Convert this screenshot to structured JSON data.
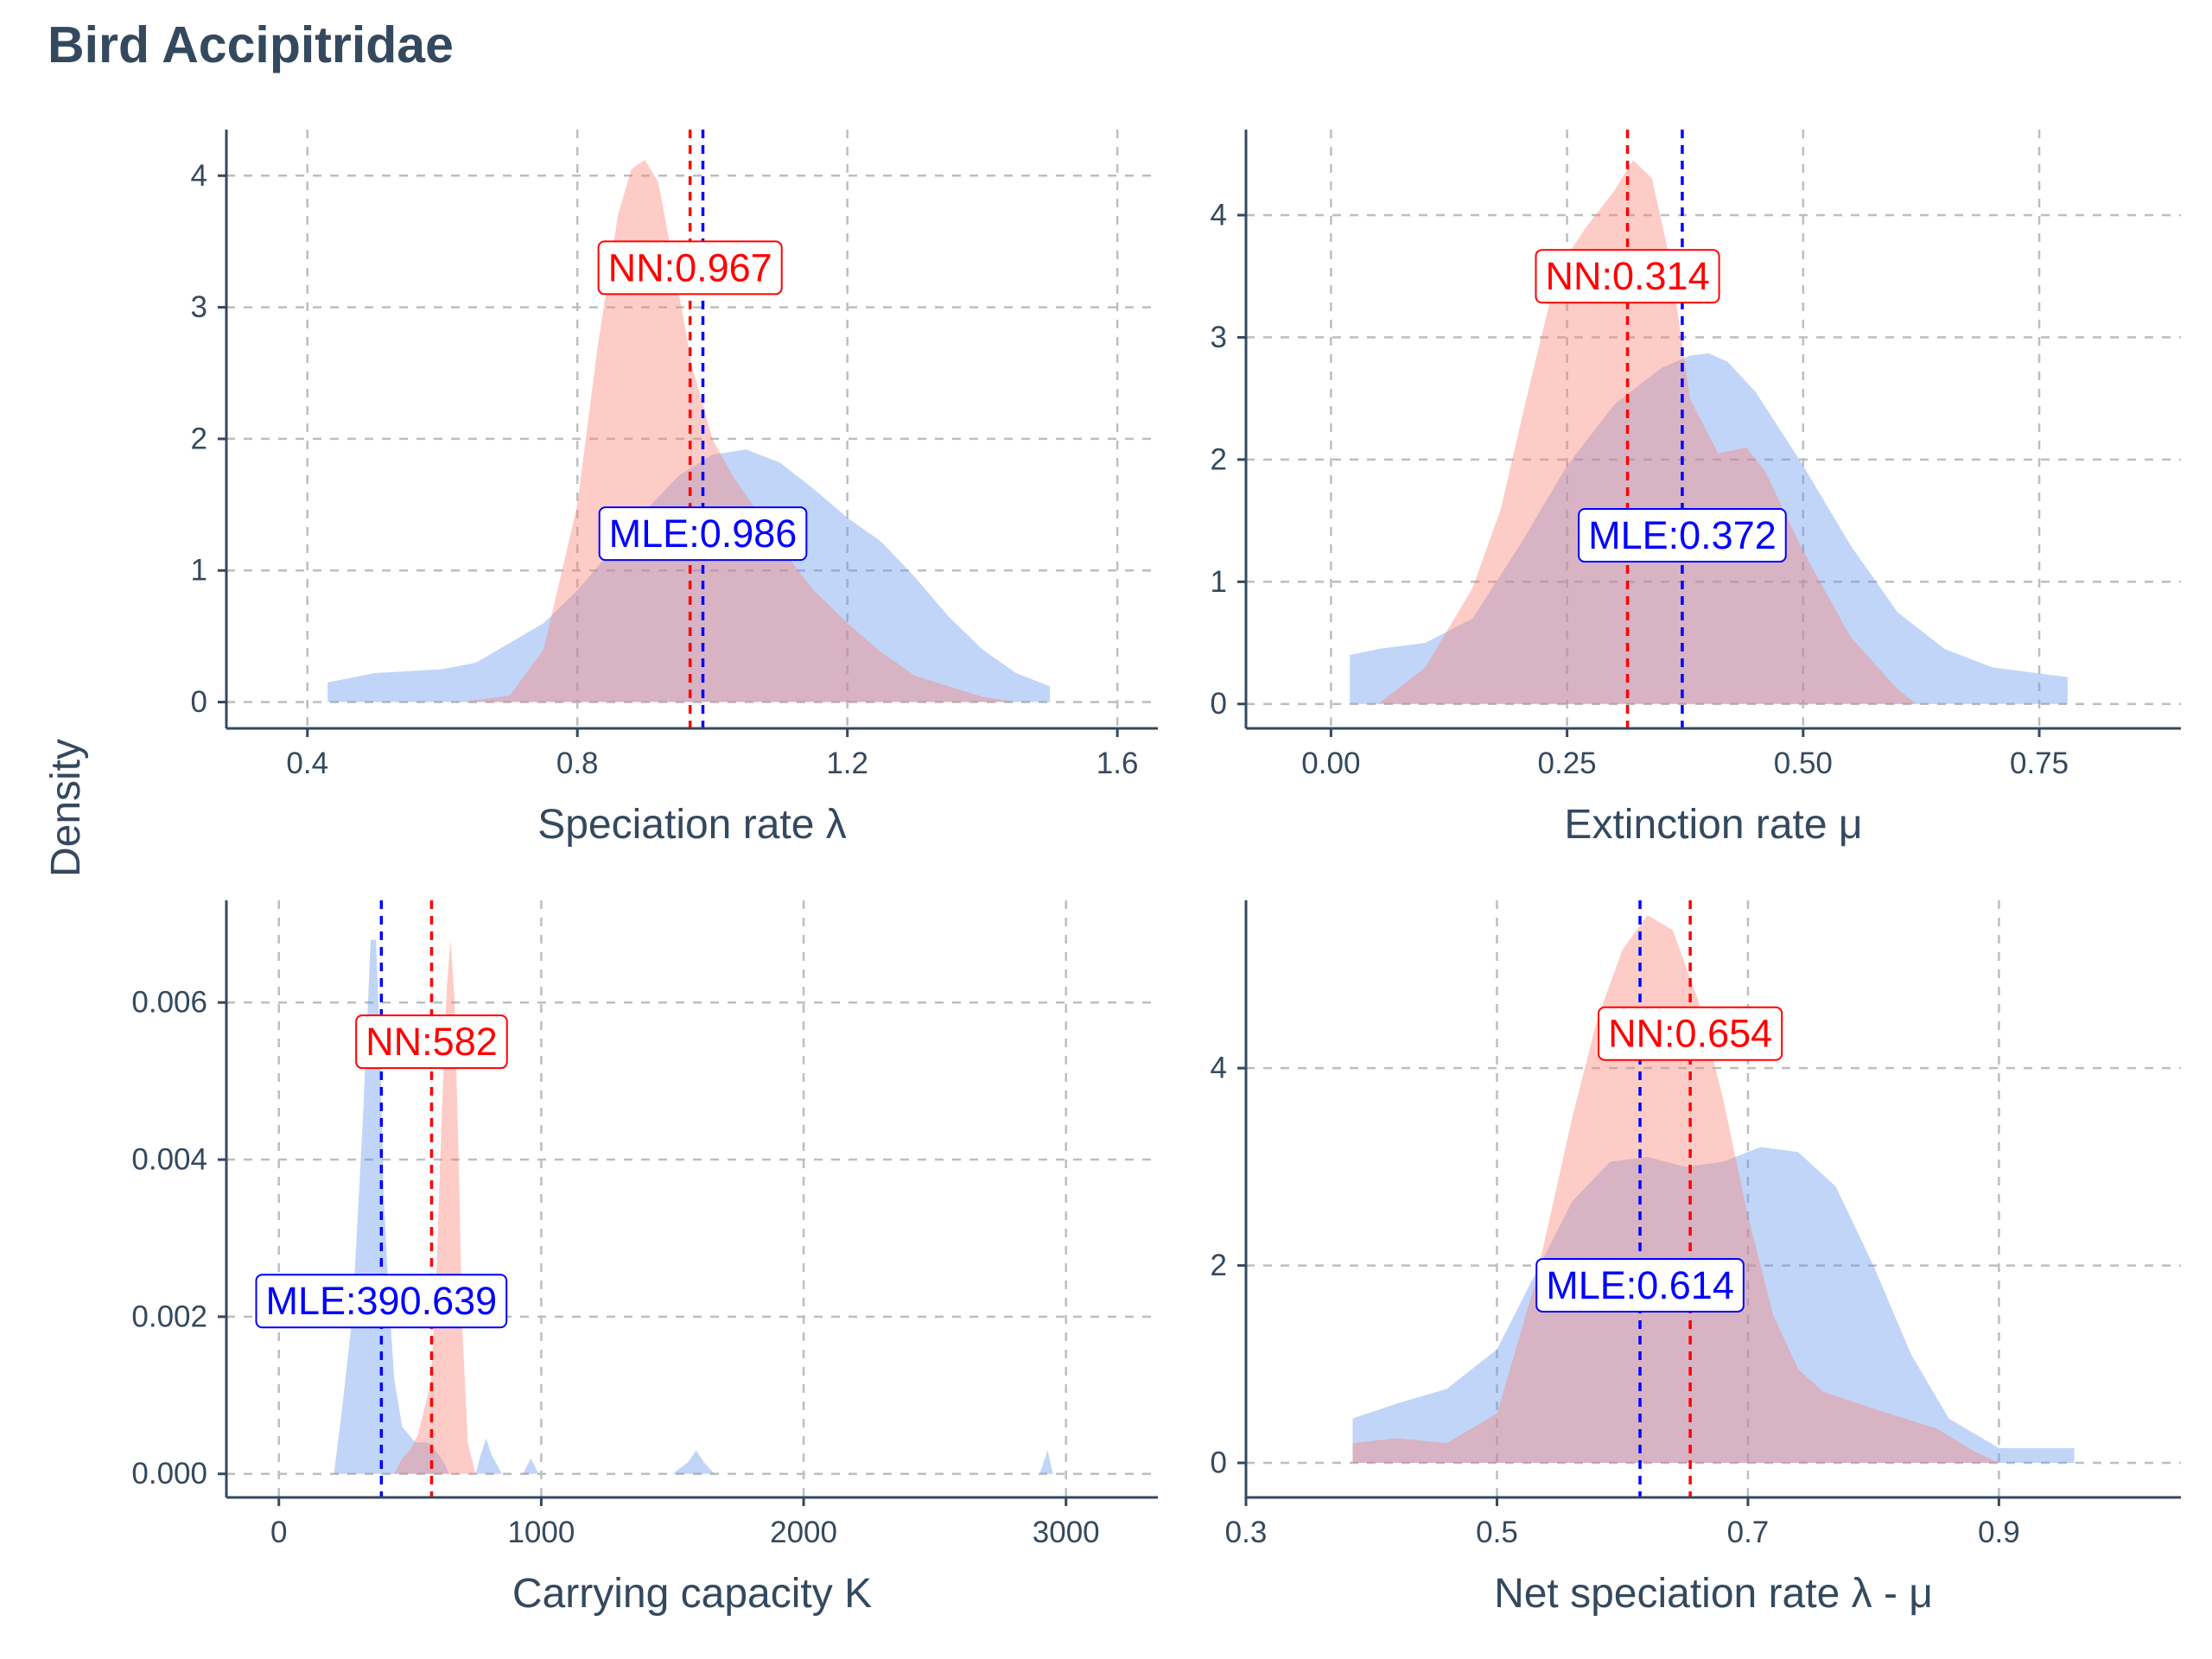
{
  "title": "Bird Accipitridae",
  "y_title": "Density",
  "colors": {
    "nn": "#FA8072",
    "mle": "#6495ED",
    "nn_line": "#FF0000",
    "mle_line": "#0000FF",
    "text": "#34495E",
    "grid": "#BEBEBE"
  },
  "legend": "none",
  "chart_data": [
    {
      "type": "area",
      "xlabel": "Speciation rate λ",
      "xlim": [
        0.28,
        1.66
      ],
      "ylim": [
        -0.2,
        4.35
      ],
      "xticks": [
        0.4,
        0.8,
        1.2,
        1.6
      ],
      "xtick_labels": [
        "0.4",
        "0.8",
        "1.2",
        "1.6"
      ],
      "yticks": [
        0,
        1,
        2,
        3,
        4
      ],
      "ytick_labels": [
        "0",
        "1",
        "2",
        "3",
        "4"
      ],
      "grid": true,
      "series": [
        {
          "key": "mle",
          "x": [
            0.43,
            0.5,
            0.6,
            0.65,
            0.7,
            0.75,
            0.8,
            0.85,
            0.9,
            0.95,
            1.0,
            1.05,
            1.1,
            1.15,
            1.2,
            1.25,
            1.3,
            1.35,
            1.4,
            1.45,
            1.5
          ],
          "y": [
            0.15,
            0.22,
            0.25,
            0.3,
            0.45,
            0.6,
            0.85,
            1.15,
            1.45,
            1.72,
            1.88,
            1.92,
            1.82,
            1.62,
            1.4,
            1.22,
            0.95,
            0.65,
            0.4,
            0.22,
            0.12
          ]
        },
        {
          "key": "nn",
          "x": [
            0.63,
            0.7,
            0.75,
            0.8,
            0.83,
            0.86,
            0.88,
            0.9,
            0.92,
            0.94,
            0.97,
            1.0,
            1.03,
            1.07,
            1.1,
            1.15,
            1.2,
            1.25,
            1.3,
            1.4,
            1.45
          ],
          "y": [
            0.0,
            0.05,
            0.4,
            1.5,
            2.7,
            3.7,
            4.05,
            4.12,
            3.95,
            3.4,
            2.55,
            2.0,
            1.72,
            1.42,
            1.18,
            0.85,
            0.6,
            0.38,
            0.2,
            0.04,
            0.0
          ]
        }
      ],
      "vlines": [
        {
          "key": "nn",
          "x": 0.967
        },
        {
          "key": "mle",
          "x": 0.986
        }
      ],
      "annotations": [
        {
          "key": "nn",
          "text": "NN:0.967",
          "x": 0.967,
          "y": 3.3
        },
        {
          "key": "mle",
          "text": "MLE:0.986",
          "x": 0.986,
          "y": 1.28
        }
      ]
    },
    {
      "type": "area",
      "xlabel": "Extinction rate μ",
      "xlim": [
        -0.09,
        0.9
      ],
      "ylim": [
        -0.2,
        4.7
      ],
      "xticks": [
        0.0,
        0.25,
        0.5,
        0.75
      ],
      "xtick_labels": [
        "0.00",
        "0.25",
        "0.50",
        "0.75"
      ],
      "yticks": [
        0,
        1,
        2,
        3,
        4
      ],
      "ytick_labels": [
        "0",
        "1",
        "2",
        "3",
        "4"
      ],
      "grid": true,
      "series": [
        {
          "key": "mle",
          "x": [
            0.02,
            0.05,
            0.1,
            0.15,
            0.2,
            0.25,
            0.3,
            0.35,
            0.38,
            0.4,
            0.42,
            0.45,
            0.5,
            0.55,
            0.6,
            0.65,
            0.7,
            0.75,
            0.78
          ],
          "y": [
            0.4,
            0.45,
            0.5,
            0.7,
            1.3,
            1.95,
            2.45,
            2.75,
            2.85,
            2.87,
            2.8,
            2.55,
            1.95,
            1.3,
            0.75,
            0.45,
            0.3,
            0.25,
            0.22
          ]
        },
        {
          "key": "nn",
          "x": [
            0.05,
            0.1,
            0.15,
            0.18,
            0.21,
            0.24,
            0.27,
            0.3,
            0.32,
            0.34,
            0.36,
            0.38,
            0.41,
            0.44,
            0.46,
            0.5,
            0.55,
            0.6,
            0.62
          ],
          "y": [
            0.0,
            0.3,
            0.95,
            1.6,
            2.6,
            3.55,
            3.9,
            4.2,
            4.45,
            4.3,
            3.6,
            2.5,
            2.05,
            2.1,
            1.9,
            1.25,
            0.55,
            0.12,
            0.0
          ]
        }
      ],
      "vlines": [
        {
          "key": "nn",
          "x": 0.314
        },
        {
          "key": "mle",
          "x": 0.372
        }
      ],
      "annotations": [
        {
          "key": "nn",
          "text": "NN:0.314",
          "x": 0.314,
          "y": 3.5
        },
        {
          "key": "mle",
          "text": "MLE:0.372",
          "x": 0.372,
          "y": 1.38
        }
      ]
    },
    {
      "type": "area",
      "xlabel": "Carrying capacity K",
      "xlim": [
        -200,
        3350
      ],
      "ylim": [
        -0.0003,
        0.0073
      ],
      "xticks": [
        0,
        1000,
        2000,
        3000
      ],
      "xtick_labels": [
        "0",
        "1000",
        "2000",
        "3000"
      ],
      "yticks": [
        0,
        0.002,
        0.004,
        0.006
      ],
      "ytick_labels": [
        "0.000",
        "0.002",
        "0.004",
        "0.006"
      ],
      "grid": true,
      "series": [
        {
          "key": "mle",
          "x": [
            210,
            240,
            280,
            320,
            350,
            370,
            385,
            400,
            420,
            440,
            470,
            520,
            570,
            620,
            650,
            700,
            750,
            770,
            790,
            810,
            850,
            930,
            960,
            990,
            1050,
            1500,
            1560,
            1590,
            1620,
            1660,
            2900,
            2930,
            2950
          ],
          "y": [
            0.0,
            0.0008,
            0.002,
            0.0045,
            0.0068,
            0.0068,
            0.0055,
            0.0035,
            0.0022,
            0.0012,
            0.0006,
            0.0004,
            0.0004,
            0.0002,
            0.0,
            0.0,
            0.0,
            0.00025,
            0.00045,
            0.00025,
            0.0,
            0.0,
            0.0002,
            0.0,
            0.0,
            0.0,
            0.00015,
            0.0003,
            0.00015,
            0.0,
            0.0,
            0.0003,
            0.0
          ]
        },
        {
          "key": "nn",
          "x": [
            440,
            470,
            500,
            530,
            560,
            580,
            600,
            620,
            640,
            655,
            670,
            685,
            700,
            720,
            750
          ],
          "y": [
            0.0,
            0.0002,
            0.0003,
            0.0005,
            0.0009,
            0.0012,
            0.0025,
            0.0045,
            0.0062,
            0.0068,
            0.006,
            0.004,
            0.0018,
            0.0004,
            0.0
          ]
        }
      ],
      "vlines": [
        {
          "key": "nn",
          "x": 582
        },
        {
          "key": "mle",
          "x": 390.639
        }
      ],
      "annotations": [
        {
          "key": "nn",
          "text": "NN:582",
          "x": 582,
          "y": 0.0055
        },
        {
          "key": "mle",
          "text": "MLE:390.639",
          "x": 390.639,
          "y": 0.0022
        }
      ]
    },
    {
      "type": "area",
      "xlabel": "Net speciation rate λ - μ",
      "xlim": [
        0.3,
        1.045
      ],
      "ylim": [
        -0.35,
        5.7
      ],
      "xticks": [
        0.3,
        0.5,
        0.7,
        0.9
      ],
      "xtick_labels": [
        "0.3",
        "0.5",
        "0.7",
        "0.9"
      ],
      "yticks": [
        0,
        2,
        4
      ],
      "ytick_labels": [
        "0",
        "2",
        "4"
      ],
      "grid": true,
      "series": [
        {
          "key": "mle",
          "x": [
            0.385,
            0.42,
            0.46,
            0.5,
            0.53,
            0.56,
            0.59,
            0.62,
            0.65,
            0.68,
            0.71,
            0.74,
            0.77,
            0.8,
            0.83,
            0.86,
            0.9,
            0.93,
            0.96
          ],
          "y": [
            0.45,
            0.6,
            0.75,
            1.15,
            1.9,
            2.65,
            3.05,
            3.1,
            3.0,
            3.05,
            3.2,
            3.15,
            2.8,
            2.0,
            1.1,
            0.45,
            0.15,
            0.15,
            0.15
          ]
        },
        {
          "key": "nn",
          "x": [
            0.385,
            0.42,
            0.46,
            0.5,
            0.53,
            0.56,
            0.58,
            0.6,
            0.62,
            0.64,
            0.66,
            0.68,
            0.7,
            0.72,
            0.74,
            0.76,
            0.8,
            0.85,
            0.88,
            0.9
          ],
          "y": [
            0.2,
            0.25,
            0.2,
            0.5,
            1.8,
            3.5,
            4.5,
            5.2,
            5.55,
            5.4,
            4.7,
            3.7,
            2.5,
            1.5,
            0.95,
            0.72,
            0.55,
            0.35,
            0.12,
            0.0
          ]
        }
      ],
      "vlines": [
        {
          "key": "nn",
          "x": 0.654
        },
        {
          "key": "mle",
          "x": 0.614
        }
      ],
      "annotations": [
        {
          "key": "nn",
          "text": "NN:0.654",
          "x": 0.654,
          "y": 4.35
        },
        {
          "key": "mle",
          "text": "MLE:0.614",
          "x": 0.614,
          "y": 1.8
        }
      ]
    }
  ]
}
